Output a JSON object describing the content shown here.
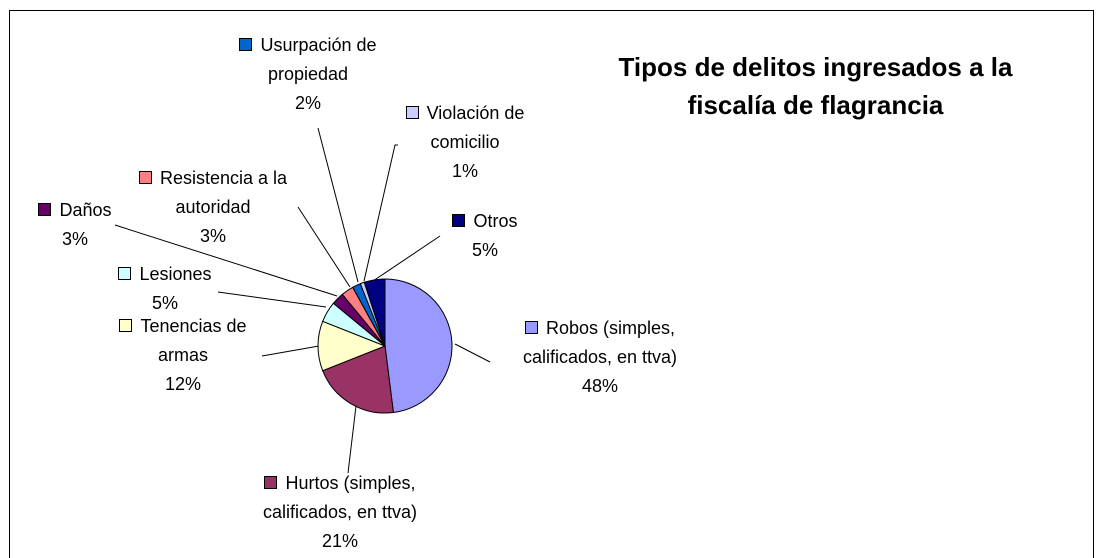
{
  "chart_data": {
    "type": "pie",
    "title": "Tipos de delitos ingresados a la fiscalía de flagrancia",
    "categories": [
      "Robos (simples, calificados, en ttva)",
      "Hurtos (simples, calificados, en ttva)",
      "Tenencias de armas",
      "Lesiones",
      "Daños",
      "Resistencia a la autoridad",
      "Usurpación de propiedad",
      "Violación de comicilio",
      "Otros"
    ],
    "values": [
      48,
      21,
      12,
      5,
      3,
      3,
      2,
      1,
      5
    ],
    "value_labels": [
      "48%",
      "21%",
      "12%",
      "5%",
      "3%",
      "3%",
      "2%",
      "1%",
      "5%"
    ],
    "colors": [
      "#9999ff",
      "#993366",
      "#ffffcc",
      "#ccffff",
      "#660066",
      "#ff8080",
      "#0066cc",
      "#ccccff",
      "#000080"
    ]
  }
}
